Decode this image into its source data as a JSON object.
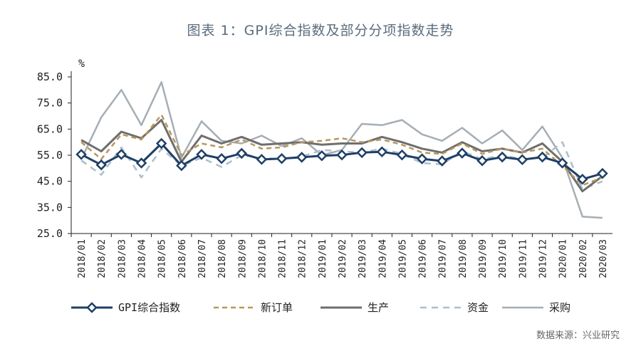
{
  "title": "图表 1：GPI综合指数及部分分项指数走势",
  "source": "数据来源：兴业研究",
  "chart_data": {
    "type": "line",
    "unit_label": "%",
    "ylim": [
      25,
      85
    ],
    "yticks": [
      "85.0",
      "75.0",
      "65.0",
      "55.0",
      "45.0",
      "35.0",
      "25.0"
    ],
    "ytick_values": [
      85,
      75,
      65,
      55,
      45,
      35,
      25
    ],
    "categories": [
      "2018/01",
      "2018/02",
      "2018/03",
      "2018/04",
      "2018/05",
      "2018/06",
      "2018/07",
      "2018/08",
      "2018/09",
      "2018/10",
      "2018/11",
      "2018/12",
      "2019/01",
      "2019/02",
      "2019/03",
      "2019/04",
      "2019/05",
      "2019/06",
      "2019/07",
      "2019/08",
      "2019/09",
      "2019/10",
      "2019/11",
      "2019/12",
      "2020/01",
      "2020/02",
      "2020/03"
    ],
    "series": [
      {
        "name": "GPI综合指数",
        "color": "#1f3f66",
        "style": "solid-marker",
        "values": [
          55.3,
          51.3,
          55.3,
          52.0,
          59.5,
          51.0,
          55.3,
          53.7,
          55.7,
          53.4,
          53.7,
          54.2,
          54.8,
          55.1,
          56.0,
          56.3,
          55.1,
          53.6,
          52.8,
          55.8,
          52.9,
          54.3,
          53.3,
          54.3,
          52.0,
          45.8,
          48.0
        ]
      },
      {
        "name": "新订单",
        "color": "#b9975b",
        "style": "dashed",
        "values": [
          60.0,
          53.5,
          63.0,
          61.0,
          70.5,
          55.0,
          59.5,
          58.0,
          61.0,
          57.5,
          58.0,
          60.0,
          60.5,
          61.5,
          60.0,
          61.0,
          59.0,
          56.0,
          55.5,
          59.5,
          55.5,
          57.5,
          56.0,
          57.5,
          51.0,
          43.5,
          46.5
        ]
      },
      {
        "name": "生产",
        "color": "#6e6e6e",
        "style": "solid-thick",
        "values": [
          60.8,
          56.5,
          64.0,
          61.5,
          68.5,
          52.5,
          62.5,
          59.5,
          62.0,
          59.0,
          59.5,
          60.0,
          59.0,
          59.5,
          59.5,
          62.0,
          60.0,
          57.5,
          56.0,
          60.0,
          56.5,
          57.5,
          56.0,
          59.5,
          52.5,
          41.2,
          47.0
        ]
      },
      {
        "name": "资金",
        "color": "#a9bfcf",
        "style": "dashed-light",
        "values": [
          53.0,
          47.5,
          58.0,
          46.5,
          57.5,
          51.0,
          54.0,
          50.5,
          55.0,
          54.0,
          53.5,
          54.5,
          57.0,
          56.5,
          56.0,
          57.5,
          55.5,
          52.0,
          51.5,
          56.5,
          53.5,
          55.0,
          53.5,
          54.0,
          60.0,
          42.0,
          45.0
        ]
      },
      {
        "name": "采购",
        "color": "#a6aeb4",
        "style": "solid-light",
        "values": [
          53.5,
          69.5,
          80.0,
          66.5,
          83.0,
          54.0,
          68.0,
          60.5,
          59.5,
          62.5,
          58.5,
          61.5,
          55.0,
          57.0,
          67.0,
          66.5,
          68.5,
          63.0,
          60.5,
          65.5,
          59.5,
          64.5,
          57.0,
          66.0,
          54.0,
          31.5,
          31.0
        ]
      }
    ]
  }
}
